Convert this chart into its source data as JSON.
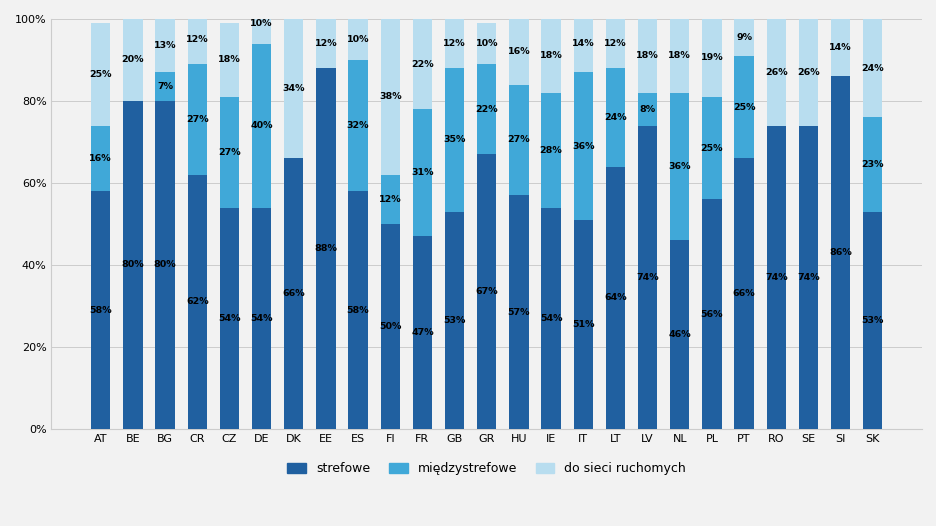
{
  "categories": [
    "AT",
    "BE",
    "BG",
    "CR",
    "CZ",
    "DE",
    "DK",
    "EE",
    "ES",
    "FI",
    "FR",
    "GB",
    "GR",
    "HU",
    "IE",
    "IT",
    "LT",
    "LV",
    "NL",
    "PL",
    "PT",
    "RO",
    "SE",
    "SI",
    "SK"
  ],
  "strefowe": [
    58,
    80,
    80,
    62,
    54,
    54,
    66,
    88,
    58,
    50,
    47,
    53,
    67,
    57,
    54,
    51,
    64,
    74,
    46,
    56,
    66,
    74,
    74,
    86,
    53
  ],
  "miedzy": [
    16,
    0,
    7,
    27,
    27,
    40,
    0,
    0,
    32,
    12,
    31,
    35,
    22,
    27,
    28,
    36,
    24,
    8,
    36,
    25,
    25,
    0,
    0,
    0,
    23
  ],
  "ruchome": [
    25,
    20,
    13,
    12,
    18,
    10,
    34,
    12,
    10,
    38,
    22,
    12,
    10,
    16,
    18,
    14,
    12,
    18,
    18,
    19,
    9,
    26,
    26,
    14,
    24
  ],
  "color_strefowe": "#2060a0",
  "color_miedzy": "#40a8d8",
  "color_ruchome": "#b8ddef",
  "background_color": "#f2f2f2",
  "legend_labels": [
    "strefowe",
    "międzystrefowe",
    "do sieci ruchomych"
  ],
  "figsize": [
    9.37,
    5.26
  ],
  "dpi": 100
}
